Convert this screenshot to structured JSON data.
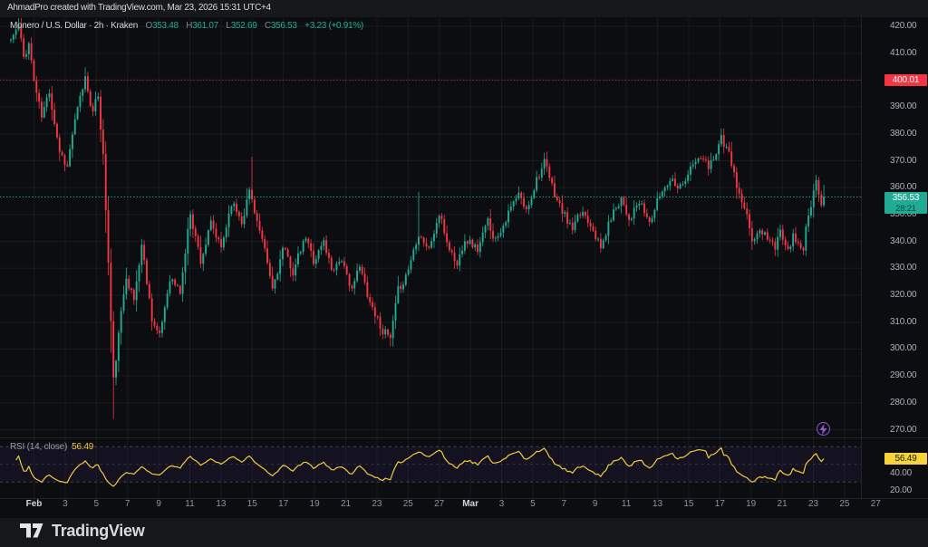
{
  "attribution": "AhmadPro created with TradingView.com, Mar 23, 2026 15:31 UTC+4",
  "legend": {
    "title": "Monero / U.S. Dollar · 2h · Kraken",
    "o_label": "O",
    "o": "353.48",
    "h_label": "H",
    "h": "361.07",
    "l_label": "L",
    "l": "352.69",
    "c_label": "C",
    "c": "356.53",
    "change": "+3.23 (+0.91%)"
  },
  "rsi_legend": {
    "name": "RSI (14, close)",
    "value": "56.49"
  },
  "badges": {
    "alert": "400.01",
    "price": "356.53",
    "countdown": "28:21",
    "rsi": "56.49"
  },
  "logo_text": "TradingView",
  "colors": {
    "up": "#22ab94",
    "down": "#f23645",
    "rsi_line": "#f0cc3f",
    "alert_line": "#f23645",
    "price_line": "#22ab94",
    "band_fill": "rgba(106,72,190,0.09)",
    "grid": "rgba(255,255,255,0.055)"
  },
  "chart_data": [
    {
      "type": "candlestick",
      "symbol": "Monero / U.S. Dollar",
      "interval": "2h",
      "exchange": "Kraken",
      "y_axis": {
        "min": 270,
        "max": 420,
        "tick_step": 10,
        "ticks": [
          "420.00",
          "410.00",
          "390.00",
          "380.00",
          "370.00",
          "360.00",
          "350.00",
          "340.00",
          "330.00",
          "320.00",
          "310.00",
          "300.00",
          "290.00",
          "280.00",
          "270.00"
        ]
      },
      "x_axis": {
        "ticks": [
          {
            "label": "Feb",
            "bold": true
          },
          {
            "label": "3"
          },
          {
            "label": "5"
          },
          {
            "label": "7"
          },
          {
            "label": "9"
          },
          {
            "label": "11"
          },
          {
            "label": "13"
          },
          {
            "label": "15"
          },
          {
            "label": "17"
          },
          {
            "label": "19"
          },
          {
            "label": "21"
          },
          {
            "label": "23"
          },
          {
            "label": "25"
          },
          {
            "label": "27"
          },
          {
            "label": "Mar",
            "bold": true
          },
          {
            "label": "3"
          },
          {
            "label": "5"
          },
          {
            "label": "7"
          },
          {
            "label": "9"
          },
          {
            "label": "11"
          },
          {
            "label": "13"
          },
          {
            "label": "15"
          },
          {
            "label": "17"
          },
          {
            "label": "19"
          },
          {
            "label": "21"
          },
          {
            "label": "23"
          },
          {
            "label": "25"
          },
          {
            "label": "27"
          }
        ]
      },
      "price_line": 356.53,
      "alert_line": 400.01,
      "candle_count": 318,
      "seed": 11,
      "noise": 1.9,
      "smooth": 0.3,
      "last_candle": [
        353.48,
        361.07,
        352.69,
        356.53
      ],
      "waypoints": [
        [
          0,
          415
        ],
        [
          3,
          420
        ],
        [
          5,
          408
        ],
        [
          7,
          414
        ],
        [
          9,
          400
        ],
        [
          12,
          386
        ],
        [
          15,
          396
        ],
        [
          19,
          374
        ],
        [
          22,
          368
        ],
        [
          24,
          380
        ],
        [
          29,
          401
        ],
        [
          32,
          388
        ],
        [
          34,
          394
        ],
        [
          36,
          372
        ],
        [
          38,
          332
        ],
        [
          40,
          288
        ],
        [
          42,
          305
        ],
        [
          45,
          328
        ],
        [
          48,
          318
        ],
        [
          51,
          339
        ],
        [
          55,
          312
        ],
        [
          58,
          304
        ],
        [
          62,
          327
        ],
        [
          66,
          321
        ],
        [
          70,
          351
        ],
        [
          74,
          333
        ],
        [
          78,
          346
        ],
        [
          82,
          337
        ],
        [
          86,
          355
        ],
        [
          90,
          348
        ],
        [
          93,
          359
        ],
        [
          95,
          352
        ],
        [
          100,
          331
        ],
        [
          102,
          322
        ],
        [
          106,
          337
        ],
        [
          110,
          329
        ],
        [
          115,
          341
        ],
        [
          118,
          333
        ],
        [
          122,
          340
        ],
        [
          125,
          330
        ],
        [
          129,
          334
        ],
        [
          132,
          322
        ],
        [
          136,
          330
        ],
        [
          140,
          318
        ],
        [
          144,
          309
        ],
        [
          148,
          303
        ],
        [
          151,
          321
        ],
        [
          155,
          330
        ],
        [
          159,
          344
        ],
        [
          163,
          337
        ],
        [
          167,
          350
        ],
        [
          170,
          340
        ],
        [
          174,
          331
        ],
        [
          177,
          342
        ],
        [
          182,
          337
        ],
        [
          186,
          347
        ],
        [
          189,
          341
        ],
        [
          193,
          349
        ],
        [
          198,
          357
        ],
        [
          201,
          351
        ],
        [
          205,
          364
        ],
        [
          208,
          369
        ],
        [
          211,
          360
        ],
        [
          215,
          351
        ],
        [
          219,
          344
        ],
        [
          223,
          351
        ],
        [
          227,
          346
        ],
        [
          230,
          337
        ],
        [
          234,
          349
        ],
        [
          238,
          357
        ],
        [
          241,
          349
        ],
        [
          245,
          354
        ],
        [
          249,
          347
        ],
        [
          253,
          357
        ],
        [
          257,
          364
        ],
        [
          261,
          361
        ],
        [
          265,
          367
        ],
        [
          269,
          371
        ],
        [
          272,
          367
        ],
        [
          277,
          379
        ],
        [
          279,
          374
        ],
        [
          281,
          369
        ],
        [
          283,
          360
        ],
        [
          287,
          348
        ],
        [
          289,
          341
        ],
        [
          293,
          344
        ],
        [
          296,
          341
        ],
        [
          298,
          337
        ],
        [
          300,
          343
        ],
        [
          303,
          339
        ],
        [
          305,
          342
        ],
        [
          307,
          339
        ],
        [
          309,
          337.5
        ],
        [
          310,
          345
        ],
        [
          312,
          352
        ],
        [
          314,
          362
        ],
        [
          315,
          356
        ],
        [
          316,
          353.48
        ],
        [
          317,
          356.53
        ]
      ],
      "spikes": [
        {
          "i": 3,
          "high": 423
        },
        {
          "i": 40,
          "low": 274
        },
        {
          "i": 94,
          "high": 371.5
        },
        {
          "i": 148,
          "low": 301
        },
        {
          "i": 159,
          "high": 358.5
        },
        {
          "i": 208,
          "high": 373
        },
        {
          "i": 277,
          "high": 382
        },
        {
          "i": 314,
          "high": 363
        }
      ]
    },
    {
      "type": "line",
      "name": "RSI",
      "period": 14,
      "source": "close",
      "value": 56.49,
      "bands": {
        "upper": 70,
        "middle": 50,
        "lower": 30
      },
      "ticks": [
        {
          "label": "40.00",
          "value": 40
        },
        {
          "label": "20.00",
          "value": 20
        }
      ]
    }
  ]
}
